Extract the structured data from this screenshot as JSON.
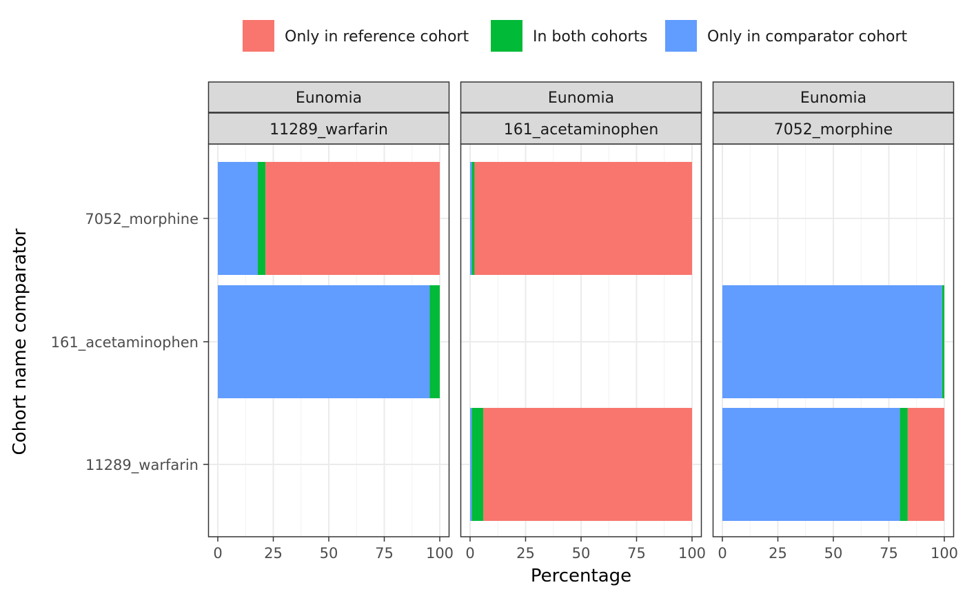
{
  "chart_data": {
    "type": "bar",
    "orientation": "horizontal",
    "stacked": true,
    "xlabel": "Percentage",
    "ylabel": "Cohort name comparator",
    "xlim": [
      0,
      100
    ],
    "x_ticks": [
      "0",
      "25",
      "50",
      "75",
      "100"
    ],
    "grid": true,
    "legend_position": "top",
    "legend": [
      {
        "key": "ref",
        "label": "Only in reference cohort",
        "color": "#F8766D"
      },
      {
        "key": "both",
        "label": "In both cohorts",
        "color": "#00BA38"
      },
      {
        "key": "comp",
        "label": "Only in comparator cohort",
        "color": "#619CFF"
      }
    ],
    "categories": [
      "7052_morphine",
      "161_acetaminophen",
      "11289_warfarin"
    ],
    "panels": [
      {
        "database": "Eunomia",
        "reference": "11289_warfarin",
        "bars": [
          {
            "comparator": "7052_morphine",
            "comp": 18,
            "both": 3.5,
            "ref": 78.5
          },
          {
            "comparator": "161_acetaminophen",
            "comp": 95.5,
            "both": 4.5,
            "ref": 0
          }
        ]
      },
      {
        "database": "Eunomia",
        "reference": "161_acetaminophen",
        "bars": [
          {
            "comparator": "7052_morphine",
            "comp": 0.8,
            "both": 1.2,
            "ref": 98
          },
          {
            "comparator": "11289_warfarin",
            "comp": 0.8,
            "both": 5.2,
            "ref": 94
          }
        ]
      },
      {
        "database": "Eunomia",
        "reference": "7052_morphine",
        "bars": [
          {
            "comparator": "161_acetaminophen",
            "comp": 99,
            "both": 1,
            "ref": 0
          },
          {
            "comparator": "11289_warfarin",
            "comp": 80,
            "both": 3.5,
            "ref": 16.5
          }
        ]
      }
    ]
  }
}
